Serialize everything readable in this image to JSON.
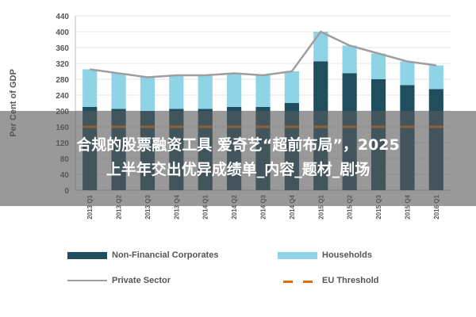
{
  "chart_data": {
    "type": "bar",
    "ylabel": "Per Cent of GDP",
    "xlabel": "",
    "ylim": [
      0,
      440
    ],
    "yticks": [
      0,
      40,
      80,
      120,
      160,
      200,
      240,
      280,
      320,
      360,
      400,
      440
    ],
    "categories": [
      "2013 Q1",
      "2013 Q2",
      "2013 Q3",
      "2013 Q4",
      "2014 Q1",
      "2014 Q2",
      "2014 Q3",
      "2014 Q4",
      "2015 Q1",
      "2015 Q2",
      "2015 Q3",
      "2015 Q4",
      "2016 Q1"
    ],
    "stacked": true,
    "series": [
      {
        "name": "Non-Financial Corporates",
        "kind": "bar",
        "color": "#1f4e5f",
        "values": [
          210,
          205,
          200,
          205,
          205,
          210,
          210,
          220,
          325,
          295,
          280,
          265,
          255
        ]
      },
      {
        "name": "Households",
        "kind": "bar",
        "color": "#8fd3e6",
        "values": [
          95,
          90,
          85,
          85,
          85,
          85,
          80,
          80,
          75,
          70,
          65,
          60,
          60
        ]
      },
      {
        "name": "Private Sector",
        "kind": "line",
        "color": "#9e9e9e",
        "values": [
          305,
          295,
          285,
          290,
          290,
          295,
          290,
          300,
          400,
          365,
          345,
          325,
          315
        ]
      },
      {
        "name": "EU Threshold",
        "kind": "dashed-line",
        "color": "#e36c0a",
        "values": [
          160,
          160,
          160,
          160,
          160,
          160,
          160,
          160,
          160,
          160,
          160,
          160,
          160
        ]
      }
    ],
    "grid": true,
    "legend_position": "bottom"
  },
  "overlay": {
    "line1": "合规的股票融资工具 爱奇艺“超前布局”，2025",
    "line2": "上半年交出优异成绩单_内容_题材_剧场"
  }
}
